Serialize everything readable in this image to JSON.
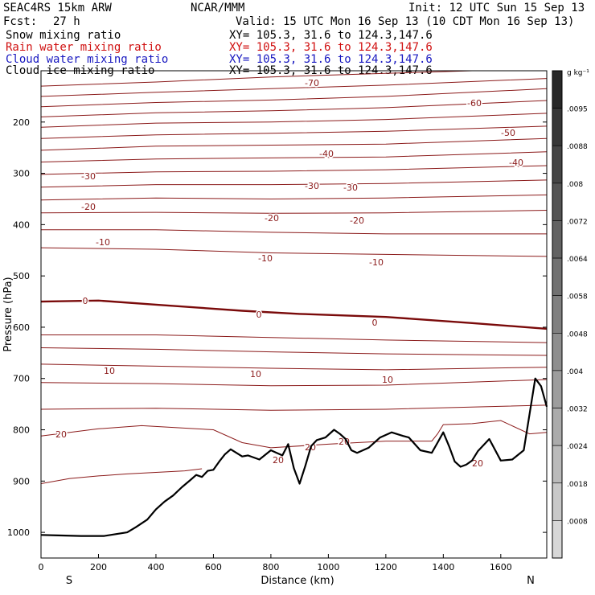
{
  "header": {
    "model": "SEAC4RS 15km ARW",
    "center": "NCAR/MMM",
    "init": "Init: 12 UTC Sun 15 Sep 13",
    "fcst_label": "Fcst:",
    "fcst_value": "27 h",
    "valid": "Valid: 15 UTC Mon 16 Sep 13 (10 CDT Mon 16 Sep 13)",
    "fields": [
      {
        "name": "Snow mixing ratio",
        "xy": "XY= 105.3, 31.6 to 124.3,147.6",
        "color": "#000000"
      },
      {
        "name": "Rain water mixing ratio",
        "xy": "XY= 105.3, 31.6 to 124.3,147.6",
        "color": "#d01010"
      },
      {
        "name": "Cloud water mixing ratio",
        "xy": "XY= 105.3, 31.6 to 124.3,147.6",
        "color": "#1818c0"
      },
      {
        "name": "Cloud ice mixing ratio",
        "xy": "XY= 105.3, 31.6 to 124.3,147.6",
        "color": "#000000"
      }
    ]
  },
  "chart_data": {
    "type": "line",
    "title": "",
    "xlabel": "Distance (km)",
    "ylabel": "Pressure (hPa)",
    "xlim": [
      0,
      1760
    ],
    "ylim": [
      1050,
      100
    ],
    "x_ticks": [
      0,
      200,
      400,
      600,
      800,
      1000,
      1200,
      1400,
      1600
    ],
    "y_ticks": [
      1000,
      900,
      800,
      700,
      600,
      500,
      400,
      300,
      200
    ],
    "x_end_labels": {
      "left": "S",
      "right": "N"
    },
    "colorbar": {
      "unit": "g kg⁻¹",
      "labels": [
        ".0095",
        ".0088",
        ".008",
        ".0072",
        ".0064",
        ".0058",
        ".0048",
        ".004",
        ".0032",
        ".0024",
        ".0018",
        ".0008"
      ]
    },
    "contour_labels": [
      "-70",
      "-60",
      "-50",
      "-40",
      "-40",
      "-30",
      "-30",
      "-30",
      "-20",
      "-20",
      "-20",
      "-10",
      "-10",
      "-10",
      "0",
      "0",
      "0",
      "10",
      "10",
      "10",
      "20",
      "20",
      "20",
      "20",
      "20"
    ],
    "terrain": {
      "x": [
        0,
        60,
        140,
        220,
        300,
        330,
        370,
        400,
        430,
        460,
        490,
        520,
        540,
        560,
        580,
        600,
        620,
        640,
        660,
        680,
        700,
        720,
        760,
        800,
        820,
        840,
        860,
        880,
        900,
        920,
        940,
        960,
        990,
        1020,
        1040,
        1060,
        1080,
        1100,
        1140,
        1180,
        1220,
        1260,
        1280,
        1320,
        1360,
        1380,
        1400,
        1420,
        1440,
        1460,
        1480,
        1500,
        1520,
        1560,
        1600,
        1640,
        1680,
        1720,
        1740,
        1760
      ],
      "y": [
        1005,
        1006,
        1007,
        1007,
        1000,
        990,
        975,
        955,
        940,
        928,
        912,
        898,
        888,
        892,
        880,
        878,
        862,
        848,
        838,
        845,
        852,
        850,
        858,
        840,
        845,
        850,
        828,
        875,
        905,
        870,
        832,
        820,
        815,
        800,
        808,
        818,
        840,
        845,
        835,
        815,
        805,
        812,
        815,
        840,
        845,
        825,
        805,
        832,
        862,
        872,
        868,
        860,
        842,
        818,
        860,
        858,
        840,
        700,
        715,
        755
      ]
    },
    "temperature_contours": [
      {
        "value": -70,
        "points": [
          [
            0,
            130
          ],
          [
            400,
            122
          ],
          [
            800,
            112
          ],
          [
            1200,
            105
          ],
          [
            1500,
            100
          ]
        ]
      },
      {
        "value": -65,
        "points": [
          [
            0,
            150
          ],
          [
            400,
            142
          ],
          [
            800,
            135
          ],
          [
            1200,
            128
          ],
          [
            1760,
            115
          ]
        ]
      },
      {
        "value": -60,
        "points": [
          [
            0,
            170
          ],
          [
            400,
            162
          ],
          [
            800,
            157
          ],
          [
            1200,
            150
          ],
          [
            1760,
            135
          ]
        ]
      },
      {
        "value": -55,
        "points": [
          [
            0,
            190
          ],
          [
            400,
            182
          ],
          [
            800,
            178
          ],
          [
            1200,
            172
          ],
          [
            1760,
            158
          ]
        ]
      },
      {
        "value": -50,
        "points": [
          [
            0,
            210
          ],
          [
            400,
            202
          ],
          [
            800,
            200
          ],
          [
            1200,
            195
          ],
          [
            1760,
            183
          ]
        ]
      },
      {
        "value": -45,
        "points": [
          [
            0,
            232
          ],
          [
            400,
            225
          ],
          [
            800,
            222
          ],
          [
            1200,
            218
          ],
          [
            1760,
            208
          ]
        ]
      },
      {
        "value": -40,
        "points": [
          [
            0,
            255
          ],
          [
            400,
            247
          ],
          [
            800,
            245
          ],
          [
            1200,
            243
          ],
          [
            1760,
            232
          ]
        ]
      },
      {
        "value": -35,
        "points": [
          [
            0,
            278
          ],
          [
            400,
            272
          ],
          [
            800,
            270
          ],
          [
            1200,
            268
          ],
          [
            1760,
            258
          ]
        ]
      },
      {
        "value": -30,
        "points": [
          [
            0,
            302
          ],
          [
            400,
            297
          ],
          [
            800,
            296
          ],
          [
            1200,
            293
          ],
          [
            1760,
            285
          ]
        ]
      },
      {
        "value": -25,
        "points": [
          [
            0,
            327
          ],
          [
            400,
            322
          ],
          [
            800,
            322
          ],
          [
            1200,
            320
          ],
          [
            1760,
            313
          ]
        ]
      },
      {
        "value": -20,
        "points": [
          [
            0,
            352
          ],
          [
            400,
            348
          ],
          [
            800,
            350
          ],
          [
            1200,
            348
          ],
          [
            1760,
            342
          ]
        ]
      },
      {
        "value": -15,
        "points": [
          [
            0,
            377
          ],
          [
            400,
            376
          ],
          [
            800,
            378
          ],
          [
            1200,
            377
          ],
          [
            1760,
            372
          ]
        ]
      },
      {
        "value": -10,
        "points": [
          [
            0,
            410
          ],
          [
            400,
            410
          ],
          [
            800,
            415
          ],
          [
            1200,
            418
          ],
          [
            1760,
            418
          ]
        ]
      },
      {
        "value": -5,
        "points": [
          [
            0,
            445
          ],
          [
            400,
            448
          ],
          [
            800,
            455
          ],
          [
            1200,
            458
          ],
          [
            1760,
            462
          ]
        ]
      },
      {
        "value": 0,
        "points": [
          [
            0,
            550
          ],
          [
            200,
            548
          ],
          [
            400,
            556
          ],
          [
            700,
            568
          ],
          [
            900,
            574
          ],
          [
            1200,
            580
          ],
          [
            1500,
            592
          ],
          [
            1760,
            603
          ]
        ]
      },
      {
        "value": 5,
        "points": [
          [
            0,
            615
          ],
          [
            400,
            615
          ],
          [
            800,
            620
          ],
          [
            1200,
            625
          ],
          [
            1760,
            630
          ]
        ]
      },
      {
        "value": 10,
        "points": [
          [
            0,
            640
          ],
          [
            400,
            643
          ],
          [
            800,
            648
          ],
          [
            1200,
            652
          ],
          [
            1760,
            655
          ]
        ]
      },
      {
        "value": 15,
        "points": [
          [
            0,
            672
          ],
          [
            400,
            676
          ],
          [
            800,
            680
          ],
          [
            1200,
            683
          ],
          [
            1760,
            678
          ]
        ]
      },
      {
        "value": 20,
        "points": [
          [
            0,
            708
          ],
          [
            400,
            710
          ],
          [
            800,
            714
          ],
          [
            1200,
            713
          ],
          [
            1760,
            702
          ]
        ]
      },
      {
        "value": 25,
        "points": [
          [
            0,
            760
          ],
          [
            400,
            758
          ],
          [
            800,
            762
          ],
          [
            1200,
            760
          ],
          [
            1760,
            752
          ]
        ]
      },
      {
        "value": 30,
        "points": [
          [
            0,
            812
          ],
          [
            200,
            798
          ],
          [
            350,
            792
          ],
          [
            600,
            800
          ],
          [
            700,
            825
          ],
          [
            800,
            835
          ],
          [
            1000,
            828
          ],
          [
            1200,
            822
          ],
          [
            1360,
            822
          ],
          [
            1380,
            808
          ],
          [
            1400,
            790
          ],
          [
            1500,
            788
          ],
          [
            1600,
            782
          ],
          [
            1700,
            808
          ],
          [
            1760,
            805
          ]
        ]
      },
      {
        "value": 35,
        "points": [
          [
            0,
            905
          ],
          [
            100,
            895
          ],
          [
            200,
            890
          ],
          [
            300,
            886
          ],
          [
            400,
            883
          ],
          [
            500,
            880
          ],
          [
            560,
            876
          ]
        ]
      }
    ]
  }
}
